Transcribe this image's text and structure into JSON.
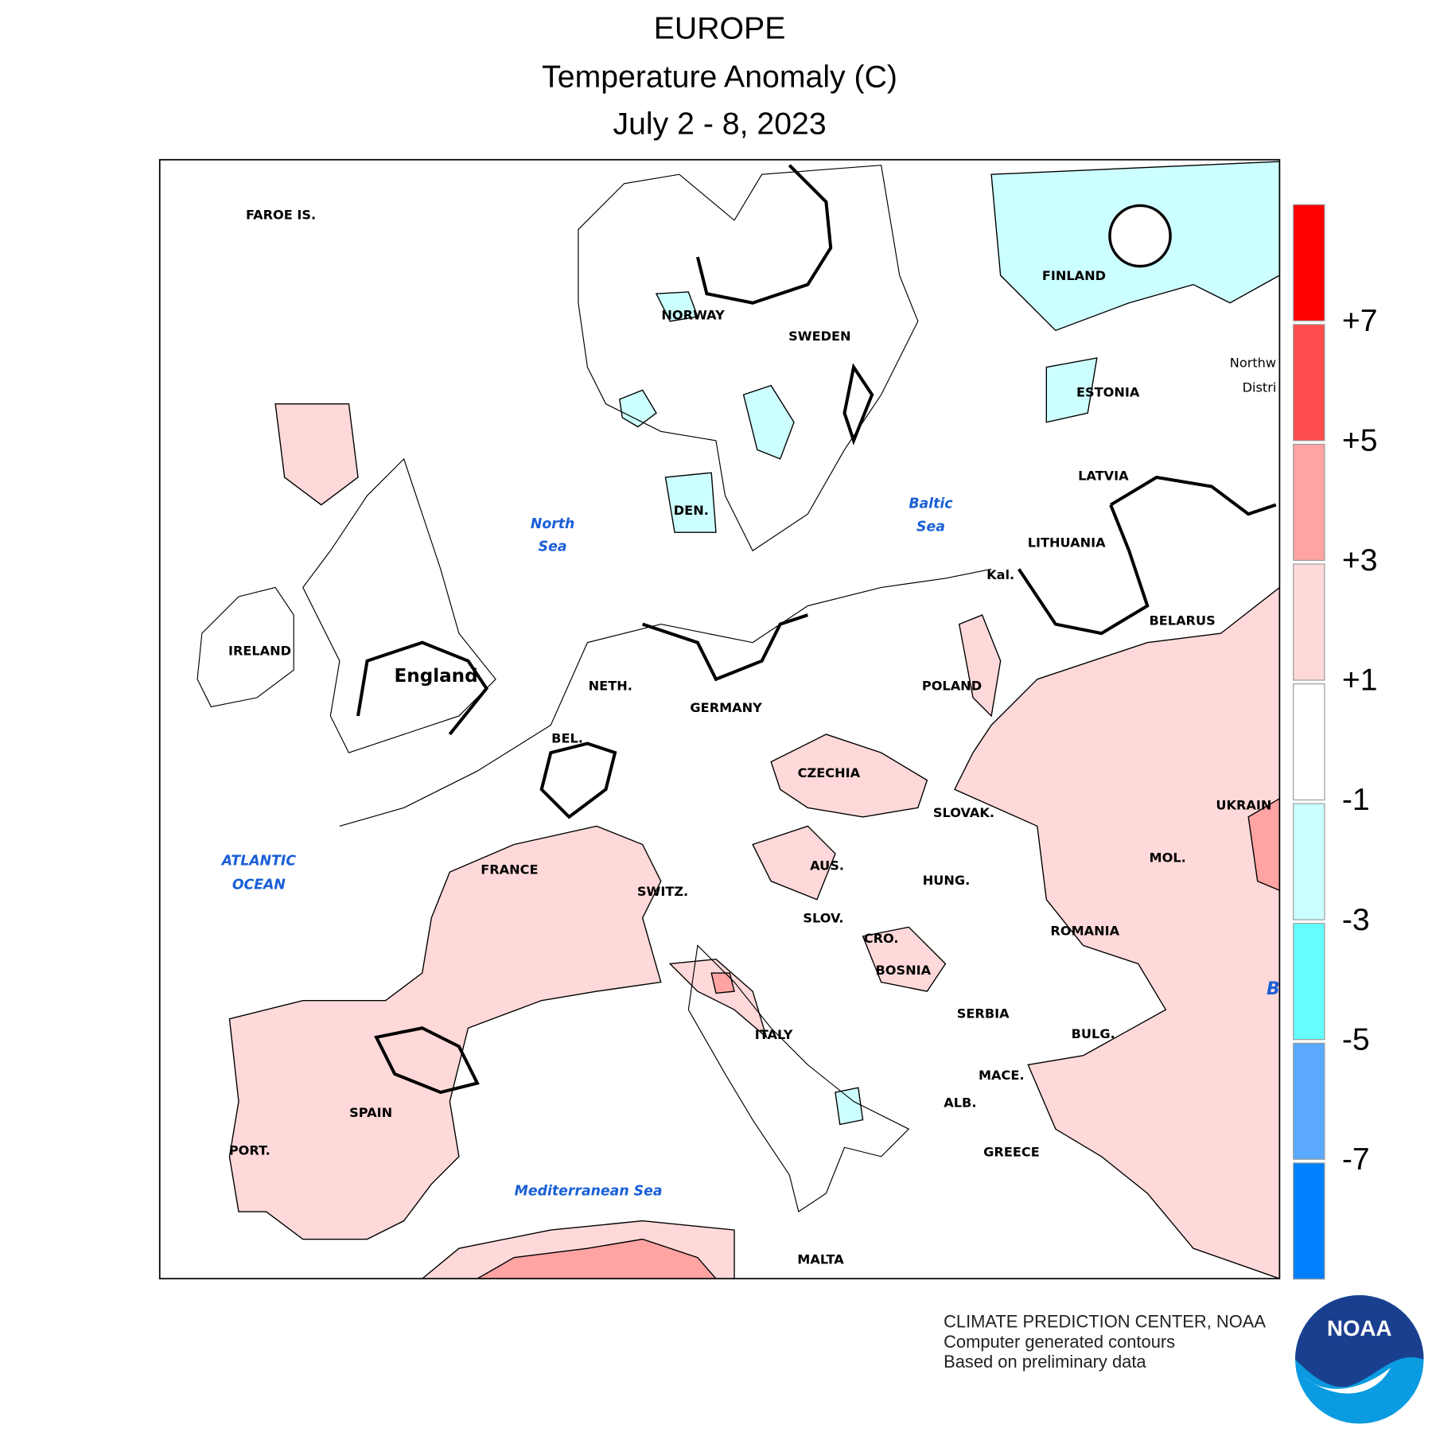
{
  "header": {
    "title": "EUROPE",
    "subtitle": "Temperature Anomaly (C)",
    "date": "July 2 - 8, 2023"
  },
  "map": {
    "labels": [
      "FAROE IS.",
      "NORWAY",
      "SWEDEN",
      "FINLAND",
      "Northw",
      "Distri",
      "ESTONIA",
      "LATVIA",
      "LITHUANIA",
      "Kal.",
      "BELARUS",
      "DEN.",
      "IRELAND",
      "England",
      "NETH.",
      "GERMANY",
      "POLAND",
      "BEL.",
      "CZECHIA",
      "SLOVAK.",
      "UKRAIN",
      "FRANCE",
      "SWITZ.",
      "AUS.",
      "HUNG.",
      "MOL.",
      "SLOV.",
      "CRO.",
      "ROMANIA",
      "BOSNIA",
      "SERBIA",
      "ITALY",
      "BULG.",
      "MACE.",
      "ALB.",
      "SPAIN",
      "PORT.",
      "GREECE",
      "MALTA"
    ],
    "water_labels": [
      "North",
      "Sea",
      "Baltic",
      "Sea",
      "ATLANTIC",
      "OCEAN",
      "Mediterranean Sea",
      "B"
    ]
  },
  "legend": {
    "colors": [
      "#ff0000",
      "#ff4d4d",
      "#ffa3a3",
      "#ffd9d9",
      "#ffffff",
      "#ccffff",
      "#66ffff",
      "#5aa9ff",
      "#0080ff"
    ],
    "ticks": [
      "+7",
      "+5",
      "+3",
      "+1",
      "-1",
      "-3",
      "-5",
      "-7"
    ]
  },
  "footer": {
    "lines": [
      "CLIMATE PREDICTION CENTER, NOAA",
      "Computer generated contours",
      "Based on preliminary data"
    ]
  },
  "logo": "NOAA"
}
